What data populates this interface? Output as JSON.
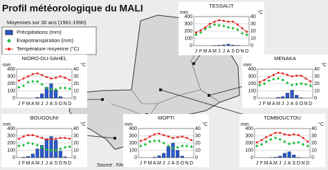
{
  "title": "Profil météorologique du MALI",
  "subtitle": "Moyennes sur 30 ans (1961-1990)",
  "source": "Source : FAOCLIM",
  "legend": [
    {
      "name": "Précipitations (mm)",
      "color": "#2a58d0"
    },
    {
      "name": "Evapotranspiration (mm)",
      "color": "#22c040"
    },
    {
      "name": "Température moyenne (°C)",
      "color": "#e02020"
    }
  ],
  "chart_data": [
    {
      "type": "climate",
      "title": "TESSALIT",
      "y_label": "mm",
      "y2_label": "°C",
      "categories": [
        "J",
        "F",
        "M",
        "A",
        "M",
        "J",
        "J",
        "A",
        "S",
        "O",
        "N",
        "D"
      ],
      "ylim": [
        0,
        400
      ],
      "yticks": [
        0,
        100,
        200,
        300,
        400
      ],
      "y2lim": [
        0,
        40
      ],
      "y2ticks": [
        0,
        10,
        20,
        30,
        40
      ],
      "grid": true,
      "series": [
        {
          "values": [
            0,
            0,
            0,
            0,
            2,
            5,
            10,
            20,
            8,
            2,
            0,
            0
          ]
        },
        {
          "values": [
            150,
            180,
            230,
            260,
            290,
            280,
            270,
            250,
            240,
            220,
            170,
            150
          ]
        },
        {
          "values": [
            18,
            21,
            25,
            30,
            33,
            35,
            34,
            33,
            33,
            29,
            24,
            19
          ],
          "axis": "y2"
        }
      ]
    },
    {
      "type": "climate",
      "title": "NIORO-DU-SAHEL",
      "y_label": "mm",
      "y2_label": "°C",
      "categories": [
        "J",
        "F",
        "M",
        "A",
        "M",
        "J",
        "J",
        "A",
        "S",
        "O",
        "N",
        "D"
      ],
      "ylim": [
        0,
        400
      ],
      "yticks": [
        0,
        100,
        200,
        300,
        400
      ],
      "y2lim": [
        0,
        40
      ],
      "y2ticks": [
        0,
        10,
        20,
        30,
        40
      ],
      "grid": true,
      "series": [
        {
          "values": [
            0,
            0,
            0,
            0,
            10,
            60,
            150,
            200,
            110,
            20,
            0,
            0
          ]
        },
        {
          "values": [
            150,
            170,
            220,
            230,
            230,
            190,
            140,
            120,
            120,
            140,
            140,
            130
          ]
        },
        {
          "values": [
            24,
            27,
            30,
            33,
            34,
            32,
            29,
            27,
            28,
            30,
            28,
            25
          ],
          "axis": "y2"
        }
      ]
    },
    {
      "type": "climate",
      "title": "MENAKA",
      "y_label": "mm",
      "y2_label": "°C",
      "categories": [
        "J",
        "F",
        "M",
        "A",
        "M",
        "J",
        "J",
        "A",
        "S",
        "O",
        "N",
        "D"
      ],
      "ylim": [
        0,
        400
      ],
      "yticks": [
        0,
        100,
        200,
        300,
        400
      ],
      "y2lim": [
        0,
        40
      ],
      "y2ticks": [
        0,
        10,
        20,
        30,
        40
      ],
      "grid": true,
      "series": [
        {
          "values": [
            0,
            0,
            0,
            0,
            10,
            20,
            70,
            110,
            40,
            5,
            0,
            0
          ]
        },
        {
          "values": [
            180,
            200,
            240,
            260,
            270,
            250,
            210,
            180,
            190,
            200,
            190,
            170
          ]
        },
        {
          "values": [
            22,
            25,
            29,
            32,
            35,
            34,
            32,
            30,
            31,
            31,
            27,
            23
          ],
          "axis": "y2"
        }
      ]
    },
    {
      "type": "climate",
      "title": "BOUGOUNI",
      "y_label": "mm",
      "y2_label": "°C",
      "categories": [
        "J",
        "F",
        "M",
        "A",
        "M",
        "J",
        "J",
        "A",
        "S",
        "O",
        "N",
        "D"
      ],
      "ylim": [
        0,
        400
      ],
      "yticks": [
        0,
        100,
        200,
        300,
        400
      ],
      "y2lim": [
        0,
        40
      ],
      "y2ticks": [
        0,
        10,
        20,
        30,
        40
      ],
      "grid": true,
      "series": [
        {
          "values": [
            0,
            5,
            15,
            50,
            120,
            170,
            260,
            290,
            240,
            90,
            10,
            0
          ]
        },
        {
          "values": [
            160,
            170,
            200,
            190,
            170,
            140,
            110,
            100,
            100,
            120,
            140,
            150
          ]
        },
        {
          "values": [
            26,
            29,
            31,
            31,
            29,
            27,
            25,
            25,
            26,
            27,
            27,
            26
          ],
          "axis": "y2"
        }
      ]
    },
    {
      "type": "climate",
      "title": "MOPTI",
      "y_label": "mm",
      "y2_label": "°C",
      "categories": [
        "J",
        "F",
        "M",
        "A",
        "M",
        "J",
        "J",
        "A",
        "S",
        "O",
        "N",
        "D"
      ],
      "ylim": [
        0,
        400
      ],
      "yticks": [
        0,
        100,
        200,
        300,
        400
      ],
      "y2lim": [
        0,
        40
      ],
      "y2ticks": [
        0,
        10,
        20,
        30,
        40
      ],
      "grid": true,
      "series": [
        {
          "values": [
            0,
            0,
            0,
            5,
            25,
            60,
            150,
            200,
            100,
            20,
            0,
            0
          ]
        },
        {
          "values": [
            160,
            180,
            220,
            230,
            230,
            200,
            160,
            130,
            140,
            160,
            160,
            150
          ]
        },
        {
          "values": [
            23,
            25,
            29,
            32,
            33,
            31,
            29,
            27,
            28,
            29,
            27,
            24
          ],
          "axis": "y2"
        }
      ]
    },
    {
      "type": "climate",
      "title": "TOMBOUCTOU",
      "y_label": "mm",
      "y2_label": "°C",
      "categories": [
        "J",
        "F",
        "M",
        "A",
        "M",
        "J",
        "J",
        "A",
        "S",
        "O",
        "N",
        "D"
      ],
      "ylim": [
        0,
        400
      ],
      "yticks": [
        0,
        100,
        200,
        300,
        400
      ],
      "y2lim": [
        0,
        40
      ],
      "y2ticks": [
        0,
        10,
        20,
        30,
        40
      ],
      "grid": true,
      "series": [
        {
          "values": [
            0,
            0,
            0,
            1,
            5,
            20,
            60,
            80,
            35,
            3,
            0,
            0
          ]
        },
        {
          "values": [
            160,
            180,
            220,
            250,
            270,
            250,
            220,
            190,
            200,
            210,
            180,
            160
          ]
        },
        {
          "values": [
            21,
            24,
            28,
            31,
            34,
            34,
            32,
            31,
            32,
            31,
            27,
            22
          ],
          "axis": "y2"
        }
      ]
    }
  ]
}
